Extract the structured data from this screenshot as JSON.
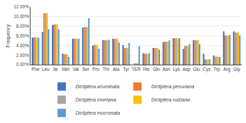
{
  "chart_data": {
    "type": "bar",
    "categories": [
      "Phe",
      "Leu",
      "Ile",
      "Met",
      "Val",
      "Ser",
      "Pro",
      "Thr",
      "Ala",
      "Tyr",
      "TER",
      "His",
      "Gln",
      "Asn",
      "Lys",
      "Asp",
      "Glu",
      "Cys",
      "Trp",
      "Arg",
      "Gly"
    ],
    "series": [
      {
        "name": "Dicliptera acuminata",
        "color": "#4472C4",
        "values": [
          5.6,
          6.8,
          8.2,
          2.3,
          5.4,
          7.7,
          4.0,
          5.1,
          5.4,
          4.1,
          0.0,
          2.4,
          3.5,
          4.7,
          5.5,
          3.3,
          5.1,
          2.3,
          1.9,
          6.9,
          6.9
        ]
      },
      {
        "name": "Dicliptera peruviana",
        "color": "#ED7D31",
        "values": [
          5.7,
          10.7,
          8.4,
          2.2,
          5.4,
          7.8,
          4.1,
          5.1,
          5.4,
          3.5,
          0.3,
          2.3,
          3.5,
          4.8,
          5.5,
          3.9,
          5.1,
          1.1,
          1.7,
          6.1,
          6.7
        ]
      },
      {
        "name": "Dicliptera montana",
        "color": "#A5A5A5",
        "values": [
          5.7,
          10.7,
          8.4,
          2.2,
          5.4,
          7.8,
          4.1,
          5.1,
          5.4,
          3.5,
          0.3,
          2.3,
          3.5,
          4.8,
          5.5,
          3.9,
          5.1,
          1.1,
          1.7,
          6.1,
          6.7
        ]
      },
      {
        "name": "Dicliptera ruiziana",
        "color": "#FFC000",
        "values": [
          5.7,
          10.7,
          8.4,
          2.2,
          5.4,
          7.8,
          4.1,
          5.1,
          5.4,
          3.5,
          0.3,
          2.3,
          3.5,
          4.8,
          5.5,
          3.9,
          5.1,
          1.1,
          1.7,
          6.1,
          6.7
        ]
      },
      {
        "name": "Dicliptera mucronata",
        "color": "#5B9BD5",
        "values": [
          5.6,
          7.4,
          7.4,
          1.6,
          5.4,
          9.7,
          3.3,
          5.2,
          4.6,
          4.5,
          3.9,
          2.4,
          3.1,
          5.1,
          5.5,
          4.3,
          4.3,
          1.2,
          1.6,
          6.2,
          6.1
        ]
      }
    ],
    "ylabel": "Frequency",
    "ylim": [
      0,
      12
    ],
    "yticks": [
      {
        "value": 0,
        "label": "0.00%"
      },
      {
        "value": 2,
        "label": "2.00%"
      },
      {
        "value": 4,
        "label": "4.00%"
      },
      {
        "value": 6,
        "label": "6.00%"
      },
      {
        "value": 8,
        "label": "8.00%"
      },
      {
        "value": 10,
        "label": "10.00%"
      },
      {
        "value": 12,
        "label": "12.00%"
      }
    ],
    "grid": true,
    "legend": "bottom"
  }
}
